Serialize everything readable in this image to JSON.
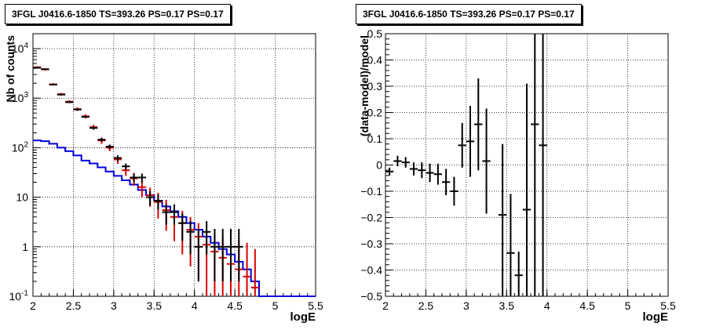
{
  "chart_data": [
    {
      "type": "line",
      "title": "3FGL J0416.6-1850 TS=393.26 PS=0.17 PS=0.17",
      "xlabel": "logE",
      "ylabel": "Nb of counts",
      "xlim": [
        2,
        5.5
      ],
      "ylim": [
        0.1,
        20000
      ],
      "ylog": true,
      "grid": true,
      "x_ticks": [
        "2",
        "2.5",
        "3",
        "3.5",
        "4",
        "4.5",
        "5",
        "5.5"
      ],
      "y_ticks": [
        {
          "value": 0.1,
          "label": "10",
          "exp": "-1"
        },
        {
          "value": 1,
          "label": "1",
          "exp": ""
        },
        {
          "value": 10,
          "label": "10",
          "exp": ""
        },
        {
          "value": 100,
          "label": "10",
          "exp": "2"
        },
        {
          "value": 1000,
          "label": "10",
          "exp": "3"
        },
        {
          "value": 10000,
          "label": "10",
          "exp": "4"
        }
      ],
      "colors": {
        "data": "#000000",
        "model_points": "#dd0000",
        "model_line": "#0000dd"
      },
      "series": [
        {
          "kind": "step",
          "color": "#0000dd",
          "x_edges": [
            2.0,
            2.1,
            2.2,
            2.3,
            2.4,
            2.5,
            2.6,
            2.7,
            2.8,
            2.9,
            3.0,
            3.1,
            3.2,
            3.3,
            3.4,
            3.5,
            3.6,
            3.7,
            3.8,
            3.9,
            4.0,
            4.1,
            4.2,
            4.3,
            4.4,
            4.5,
            4.6,
            4.7,
            4.8,
            5.5
          ],
          "values": [
            140,
            135,
            120,
            100,
            85,
            70,
            55,
            48,
            40,
            33,
            27,
            22,
            18,
            14,
            11,
            8.5,
            6.5,
            5.2,
            4.0,
            3.0,
            2.2,
            1.6,
            1.2,
            0.9,
            0.7,
            0.5,
            0.35,
            0.2,
            0.1
          ]
        },
        {
          "kind": "points",
          "color": "#dd0000",
          "x": [
            2.05,
            2.15,
            2.25,
            2.35,
            2.45,
            2.55,
            2.65,
            2.75,
            2.85,
            2.95,
            3.05,
            3.15,
            3.25,
            3.35,
            3.45,
            3.55,
            3.65,
            3.75,
            3.85,
            3.95,
            4.05,
            4.15,
            4.25,
            4.35,
            4.45,
            4.55,
            4.65,
            4.75
          ],
          "y": [
            4200,
            3800,
            1900,
            1200,
            850,
            600,
            430,
            260,
            140,
            100,
            58,
            35,
            24,
            16,
            11,
            8,
            5.5,
            4,
            3,
            2.2,
            1.6,
            1.1,
            0.8,
            0.6,
            0.45,
            0.35,
            0.25,
            0.15
          ],
          "y_low": [
            4000,
            3600,
            1800,
            1130,
            790,
            550,
            390,
            230,
            120,
            85,
            47,
            27,
            17,
            10,
            6.4,
            3.7,
            2.1,
            1.3,
            0.7,
            0.4,
            0.22,
            0.1,
            0.1,
            0.1,
            0.1,
            0.1,
            0.1,
            0.1
          ],
          "y_high": [
            4400,
            4000,
            2000,
            1270,
            910,
            650,
            470,
            290,
            160,
            115,
            69,
            43,
            31,
            22,
            15.6,
            12.3,
            8.9,
            6.7,
            5.3,
            4,
            3,
            2.1,
            1.8,
            1.6,
            1.45,
            1.35,
            1.2,
            0.9
          ]
        },
        {
          "kind": "points",
          "color": "#000000",
          "x": [
            2.05,
            2.15,
            2.25,
            2.35,
            2.45,
            2.55,
            2.65,
            2.75,
            2.85,
            2.95,
            3.05,
            3.15,
            3.25,
            3.35,
            3.45,
            3.55,
            3.65,
            3.75,
            3.85,
            3.95,
            4.05,
            4.15,
            4.25,
            4.35,
            4.45,
            4.55
          ],
          "y": [
            4100,
            3850,
            1880,
            1180,
            830,
            590,
            420,
            250,
            145,
            105,
            62,
            42,
            25,
            25,
            10,
            8.5,
            5,
            5,
            3,
            2,
            1,
            2,
            1,
            1,
            1,
            1
          ],
          "y_low": [
            3990,
            3790,
            1840,
            1150,
            800,
            565,
            400,
            234,
            133,
            95,
            54,
            36,
            20,
            20,
            6.8,
            5.6,
            2.8,
            2.8,
            1.3,
            0.7,
            0.2,
            0.7,
            0.2,
            0.2,
            0.2,
            0.2
          ],
          "y_high": [
            4210,
            3910,
            1920,
            1210,
            860,
            615,
            440,
            266,
            157,
            115,
            70,
            48,
            30,
            30,
            13.2,
            11.4,
            7.2,
            7.2,
            4.7,
            3.3,
            2.3,
            3.3,
            2.3,
            2.3,
            2.3,
            2.3
          ]
        }
      ]
    },
    {
      "type": "scatter",
      "title": "3FGL J0416.6-1850 TS=393.26 PS=0.17 PS=0.17",
      "xlabel": "logE",
      "ylabel": "(data-model)/model",
      "xlim": [
        2,
        5.5
      ],
      "ylim": [
        -0.5,
        0.5
      ],
      "grid": true,
      "x_ticks": [
        "2",
        "2.5",
        "3",
        "3.5",
        "4",
        "4.5",
        "5",
        "5.5"
      ],
      "y_ticks": [
        "−0.5",
        "−0.4",
        "−0.3",
        "−0.2",
        "−0.1",
        "0",
        "0.1",
        "0.2",
        "0.3",
        "0.4",
        "0.5"
      ],
      "series": [
        {
          "color": "#000000",
          "x": [
            2.05,
            2.15,
            2.25,
            2.35,
            2.45,
            2.55,
            2.65,
            2.75,
            2.85,
            2.95,
            3.05,
            3.15,
            3.25,
            3.45,
            3.55,
            3.65,
            3.75,
            3.85,
            3.95
          ],
          "y": [
            -0.025,
            0.015,
            0.01,
            -0.015,
            -0.02,
            -0.03,
            -0.035,
            -0.065,
            -0.1,
            0.075,
            0.09,
            0.155,
            0.015,
            -0.19,
            -0.335,
            -0.42,
            -0.17,
            0.155,
            0.075
          ],
          "y_low": [
            -0.04,
            -0.005,
            -0.01,
            -0.04,
            -0.05,
            -0.065,
            -0.075,
            -0.115,
            -0.155,
            -0.01,
            -0.045,
            -0.02,
            -0.185,
            -0.5,
            -0.5,
            -0.5,
            -0.5,
            -0.5,
            -0.5
          ],
          "y_high": [
            -0.01,
            0.035,
            0.03,
            0.01,
            0.01,
            0.005,
            0.005,
            -0.015,
            -0.045,
            0.16,
            0.225,
            0.33,
            0.215,
            0.08,
            -0.11,
            -0.33,
            0.31,
            0.5,
            0.5
          ]
        }
      ]
    }
  ]
}
